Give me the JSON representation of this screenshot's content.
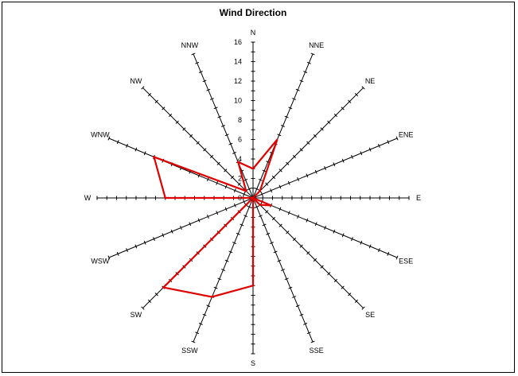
{
  "chart_data": {
    "type": "radar",
    "title": "Wind Direction",
    "directions": [
      "N",
      "NNE",
      "NE",
      "ENE",
      "E",
      "ESE",
      "SE",
      "SSE",
      "S",
      "SSW",
      "SW",
      "WSW",
      "W",
      "WNW",
      "NW",
      "NNW"
    ],
    "radial_ticks": [
      "0",
      "2",
      "4",
      "6",
      "8",
      "10",
      "12",
      "14",
      "16"
    ],
    "rmax": 16,
    "grid": false,
    "series": [
      {
        "values": [
          3,
          6.5,
          1,
          0,
          0,
          2,
          1,
          0,
          9,
          11,
          13,
          0,
          9,
          11,
          1,
          4
        ],
        "color": "#e00000"
      }
    ]
  }
}
